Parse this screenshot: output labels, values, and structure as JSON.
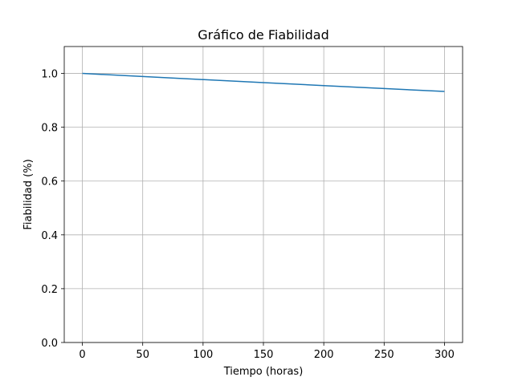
{
  "chart_data": {
    "type": "line",
    "title": "Gráfico de Fiabilidad",
    "xlabel": "Tiempo (horas)",
    "ylabel": "Fiabilidad (%)",
    "xlim": [
      -15,
      315
    ],
    "ylim": [
      0,
      1.1
    ],
    "xticks": [
      0,
      50,
      100,
      150,
      200,
      250,
      300
    ],
    "yticks": [
      0.0,
      0.2,
      0.4,
      0.6,
      0.8,
      1.0
    ],
    "xtick_labels": [
      "0",
      "50",
      "100",
      "150",
      "200",
      "250",
      "300"
    ],
    "ytick_labels": [
      "0.0",
      "0.2",
      "0.4",
      "0.6",
      "0.8",
      "1.0"
    ],
    "grid": true,
    "series": [
      {
        "color": "#1f77b4",
        "x": [
          0,
          50,
          100,
          150,
          200,
          250,
          300
        ],
        "y": [
          1.0,
          0.9885,
          0.9772,
          0.9659,
          0.9548,
          0.9438,
          0.933
        ]
      }
    ]
  }
}
